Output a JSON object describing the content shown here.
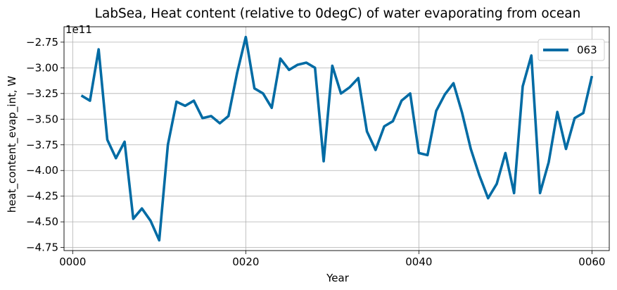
{
  "chart_data": {
    "type": "line",
    "title": "LabSea, Heat content (relative to 0degC) of water evaporating from ocean",
    "xlabel": "Year",
    "ylabel": "heat_content_evap_int, W",
    "y_offset_label": "1e11",
    "xlim": [
      -1,
      62
    ],
    "ylim": [
      -4.78,
      -2.6
    ],
    "x_ticks": [
      0,
      20,
      40,
      60
    ],
    "x_tick_labels": [
      "0000",
      "0020",
      "0040",
      "0060"
    ],
    "y_ticks": [
      -4.75,
      -4.5,
      -4.25,
      -4.0,
      -3.75,
      -3.5,
      -3.25,
      -3.0,
      -2.75
    ],
    "y_tick_labels": [
      "−4.75",
      "−4.50",
      "−4.25",
      "−4.00",
      "−3.75",
      "−3.50",
      "−3.25",
      "−3.00",
      "−2.75"
    ],
    "grid": true,
    "legend_position": "top-right",
    "series": [
      {
        "name": "063",
        "color": "#006ba4",
        "x": [
          1,
          2,
          3,
          4,
          5,
          6,
          7,
          8,
          9,
          10,
          11,
          12,
          13,
          14,
          15,
          16,
          17,
          18,
          19,
          20,
          21,
          22,
          23,
          24,
          25,
          26,
          27,
          28,
          29,
          30,
          31,
          32,
          33,
          34,
          35,
          36,
          37,
          38,
          39,
          40,
          41,
          42,
          43,
          44,
          45,
          46,
          47,
          48,
          49,
          50,
          51,
          52,
          53,
          54,
          55,
          56,
          57,
          58,
          59,
          60
        ],
        "values": [
          -3.27,
          -3.32,
          -2.82,
          -3.7,
          -3.88,
          -3.72,
          -4.47,
          -4.37,
          -4.49,
          -4.68,
          -3.75,
          -3.33,
          -3.37,
          -3.32,
          -3.49,
          -3.47,
          -3.54,
          -3.47,
          -3.05,
          -2.7,
          -3.2,
          -3.25,
          -3.39,
          -2.91,
          -3.02,
          -2.97,
          -2.95,
          -3.0,
          -3.91,
          -2.98,
          -3.25,
          -3.19,
          -3.1,
          -3.62,
          -3.8,
          -3.57,
          -3.52,
          -3.32,
          -3.25,
          -3.83,
          -3.85,
          -3.42,
          -3.26,
          -3.15,
          -3.44,
          -3.79,
          -4.05,
          -4.27,
          -4.13,
          -3.83,
          -4.22,
          -3.18,
          -2.88,
          -4.22,
          -3.92,
          -3.43,
          -3.79,
          -3.49,
          -3.44,
          -3.08
        ]
      }
    ]
  }
}
